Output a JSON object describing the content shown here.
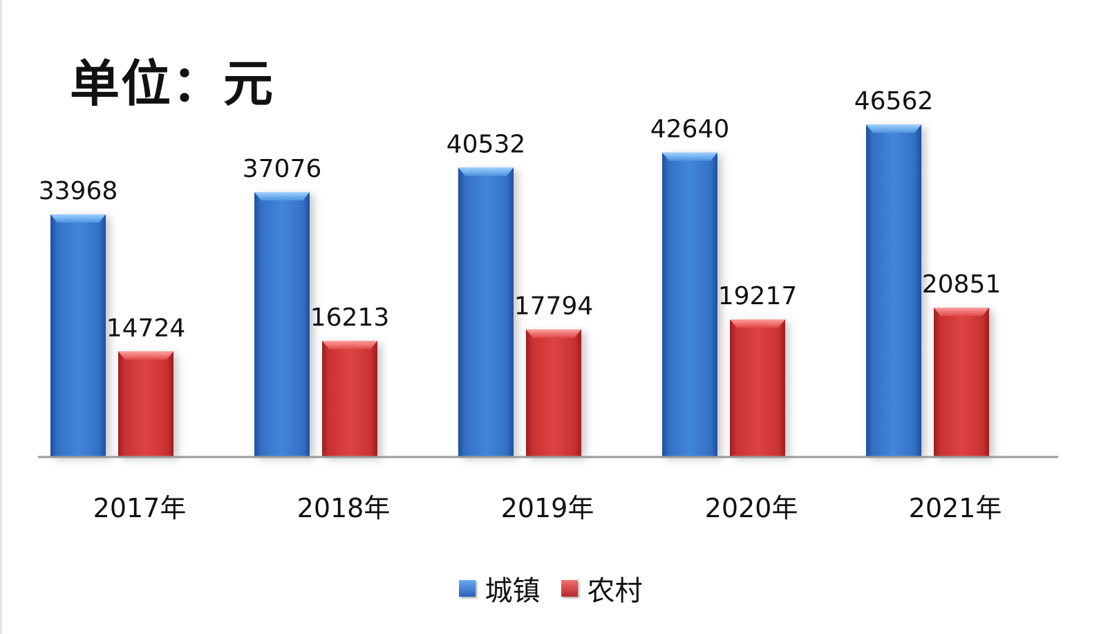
{
  "unit_title": "单位：元",
  "chart_data": {
    "type": "bar",
    "categories": [
      "2017年",
      "2018年",
      "2019年",
      "2020年",
      "2021年"
    ],
    "series": [
      {
        "name": "城镇",
        "values": [
          33968,
          37076,
          40532,
          42640,
          46562
        ],
        "color": "#3a7bd0"
      },
      {
        "name": "农村",
        "values": [
          14724,
          16213,
          17794,
          19217,
          20851
        ],
        "color": "#d93a3a"
      }
    ],
    "ylim": [
      0,
      50000
    ],
    "grid": false,
    "data_labels": true,
    "legend_position": "bottom",
    "xlabel": "",
    "ylabel": ""
  }
}
